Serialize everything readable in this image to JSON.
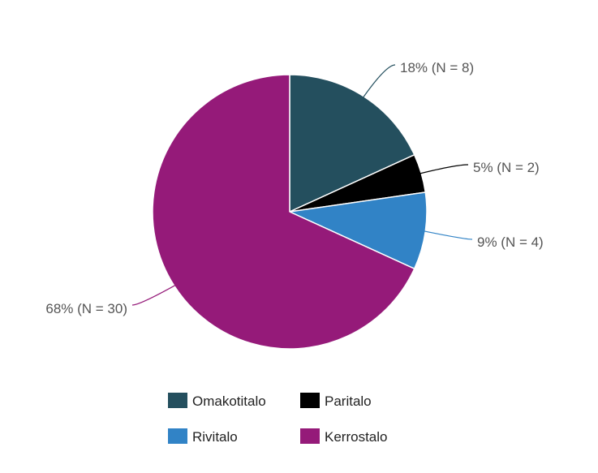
{
  "chart_data": {
    "type": "pie",
    "title": "",
    "start_angle_deg": 0,
    "direction": "clockwise",
    "slices": [
      {
        "name": "Omakotitalo",
        "value": 8,
        "percent": 18,
        "label": "18% (N = 8)",
        "color": "#244f5e"
      },
      {
        "name": "Paritalo",
        "value": 2,
        "percent": 5,
        "label": "5% (N = 2)",
        "color": "#000000"
      },
      {
        "name": "Rivitalo",
        "value": 4,
        "percent": 9,
        "label": "9% (N = 4)",
        "color": "#3183c6"
      },
      {
        "name": "Kerrostalo",
        "value": 30,
        "percent": 68,
        "label": "68% (N = 30)",
        "color": "#951a79"
      }
    ],
    "legend": {
      "placement": "bottom",
      "entries": [
        "Omakotitalo",
        "Paritalo",
        "Rivitalo",
        "Kerrostalo"
      ]
    }
  }
}
